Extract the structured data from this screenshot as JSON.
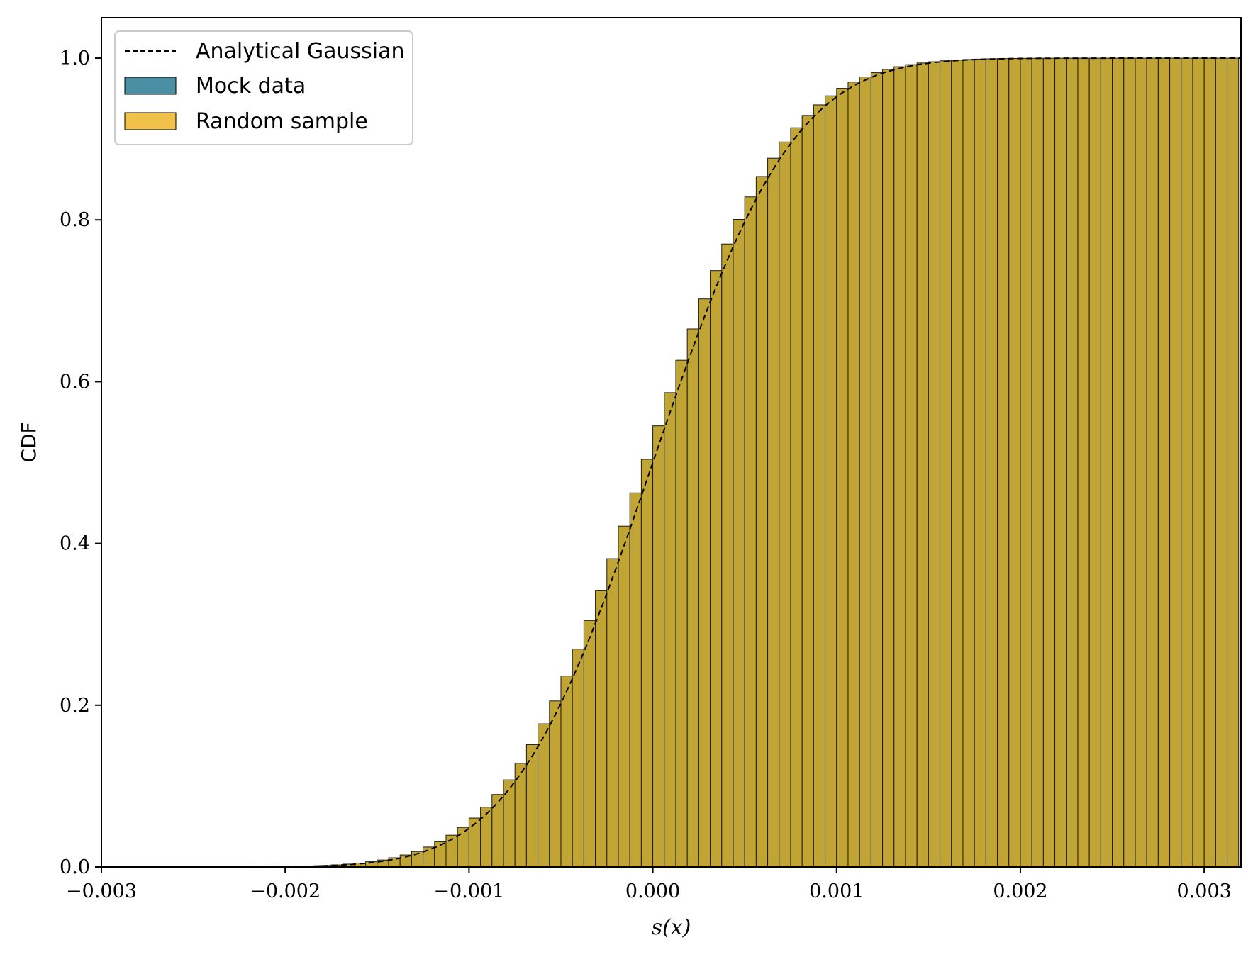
{
  "chart_data": {
    "type": "bar",
    "title": "",
    "xlabel": "s(x)",
    "ylabel": "CDF",
    "xlim": [
      -0.003,
      0.0032
    ],
    "ylim": [
      0.0,
      1.05
    ],
    "xticks": [
      -0.003,
      -0.002,
      -0.001,
      0.0,
      0.001,
      0.002,
      0.003
    ],
    "xtick_labels": [
      "−0.003",
      "−0.002",
      "−0.001",
      "0.000",
      "0.001",
      "0.002",
      "0.003"
    ],
    "yticks": [
      0.0,
      0.2,
      0.4,
      0.6,
      0.8,
      1.0
    ],
    "ytick_labels": [
      "0.0",
      "0.2",
      "0.4",
      "0.6",
      "0.8",
      "1.0"
    ],
    "grid": false,
    "legend": {
      "placement": "upper-left",
      "entries": [
        {
          "label": "Analytical Gaussian",
          "kind": "dashed-line",
          "color": "#000000"
        },
        {
          "label": "Mock data",
          "kind": "patch",
          "color": "#4a8fa3"
        },
        {
          "label": "Random sample",
          "kind": "patch",
          "color": "#f0c24a"
        }
      ]
    },
    "histogram": {
      "name": "Random sample / Mock data (overlaid)",
      "color": "#c1a534",
      "edgecolor": "#1a1a1a",
      "bin_width": 6.25e-05,
      "bin_start": -0.003,
      "bin_end": 0.0032,
      "cumulative": true
    },
    "gaussian": {
      "name": "Analytical Gaussian",
      "mean": 0.0,
      "sigma": 0.0006,
      "style": "dashed"
    }
  },
  "colors": {
    "axes": "#000000",
    "bar_fill": "#c1a534",
    "bar_edge": "#1a1a1a"
  }
}
